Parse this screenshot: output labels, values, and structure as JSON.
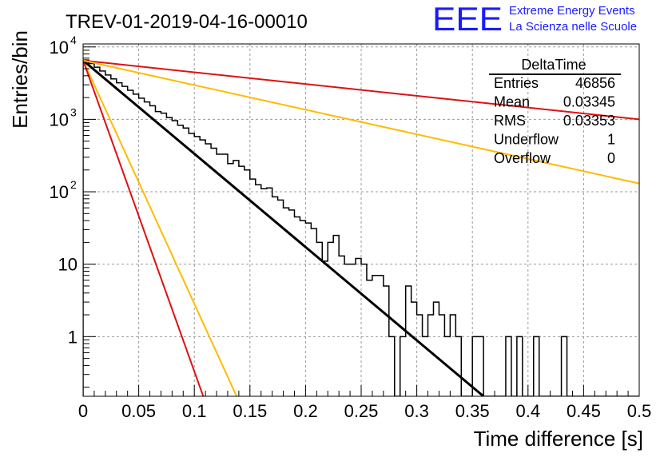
{
  "title": "TREV-01-2019-04-16-00010",
  "logo": {
    "mark": "EEE",
    "line1": "Extreme Energy Events",
    "line2": "La Scienza nelle Scuole",
    "color": "#1a1aff"
  },
  "stats": {
    "name": "DeltaTime",
    "rows": [
      {
        "label": "Entries",
        "value": "46856"
      },
      {
        "label": "Mean",
        "value": "0.03345"
      },
      {
        "label": "RMS",
        "value": "0.03353"
      },
      {
        "label": "Underflow",
        "value": "1"
      },
      {
        "label": "Overflow",
        "value": "0"
      }
    ]
  },
  "chart_data": {
    "type": "line",
    "title": "TREV-01-2019-04-16-00010",
    "xlabel": "Time difference [s]",
    "ylabel": "Entries/bin",
    "xlim": [
      0,
      0.5
    ],
    "ylim": [
      0.15,
      11000
    ],
    "yscale": "log",
    "grid": true,
    "x_ticks": [
      "0",
      "0.05",
      "0.1",
      "0.15",
      "0.2",
      "0.25",
      "0.3",
      "0.35",
      "0.4",
      "0.45",
      "0.5"
    ],
    "y_ticks": [
      {
        "value": 1,
        "label": "1"
      },
      {
        "value": 10,
        "label": "10"
      },
      {
        "value": 100,
        "label": "10",
        "exp": "2"
      },
      {
        "value": 1000,
        "label": "10",
        "exp": "3"
      },
      {
        "value": 10000,
        "label": "10",
        "exp": "4"
      }
    ],
    "histogram": {
      "name": "DeltaTime",
      "color": "#000000",
      "bins": [
        [
          0.0,
          6600
        ],
        [
          0.005,
          5900
        ],
        [
          0.01,
          5250
        ],
        [
          0.015,
          4650
        ],
        [
          0.02,
          4100
        ],
        [
          0.025,
          3620
        ],
        [
          0.03,
          3200
        ],
        [
          0.035,
          2850
        ],
        [
          0.04,
          2520
        ],
        [
          0.045,
          2230
        ],
        [
          0.05,
          1960
        ],
        [
          0.055,
          1740
        ],
        [
          0.06,
          1540
        ],
        [
          0.065,
          1280
        ],
        [
          0.07,
          1220
        ],
        [
          0.075,
          1060
        ],
        [
          0.08,
          960
        ],
        [
          0.085,
          830
        ],
        [
          0.09,
          760
        ],
        [
          0.095,
          640
        ],
        [
          0.1,
          580
        ],
        [
          0.105,
          520
        ],
        [
          0.11,
          460
        ],
        [
          0.115,
          400
        ],
        [
          0.12,
          330
        ],
        [
          0.125,
          330
        ],
        [
          0.13,
          245
        ],
        [
          0.135,
          270
        ],
        [
          0.14,
          225
        ],
        [
          0.145,
          200
        ],
        [
          0.15,
          150
        ],
        [
          0.155,
          125
        ],
        [
          0.16,
          110
        ],
        [
          0.165,
          113
        ],
        [
          0.17,
          85
        ],
        [
          0.175,
          77
        ],
        [
          0.18,
          60
        ],
        [
          0.185,
          56
        ],
        [
          0.19,
          45
        ],
        [
          0.195,
          40
        ],
        [
          0.2,
          37
        ],
        [
          0.205,
          31
        ],
        [
          0.21,
          20
        ],
        [
          0.215,
          11
        ],
        [
          0.22,
          20
        ],
        [
          0.225,
          25
        ],
        [
          0.23,
          13
        ],
        [
          0.235,
          10
        ],
        [
          0.24,
          10
        ],
        [
          0.245,
          12
        ],
        [
          0.25,
          10
        ],
        [
          0.255,
          6
        ],
        [
          0.26,
          7
        ],
        [
          0.265,
          7
        ],
        [
          0.27,
          5
        ],
        [
          0.275,
          1
        ],
        [
          0.28,
          0
        ],
        [
          0.285,
          1
        ],
        [
          0.29,
          5
        ],
        [
          0.295,
          3
        ],
        [
          0.3,
          2
        ],
        [
          0.305,
          1
        ],
        [
          0.31,
          2
        ],
        [
          0.315,
          3
        ],
        [
          0.32,
          2
        ],
        [
          0.325,
          1
        ],
        [
          0.33,
          2
        ],
        [
          0.335,
          1
        ],
        [
          0.34,
          0
        ],
        [
          0.345,
          0
        ],
        [
          0.35,
          1
        ],
        [
          0.355,
          1
        ],
        [
          0.36,
          0
        ],
        [
          0.365,
          0
        ],
        [
          0.37,
          0
        ],
        [
          0.375,
          0
        ],
        [
          0.38,
          1
        ],
        [
          0.385,
          0
        ],
        [
          0.39,
          1
        ],
        [
          0.395,
          0
        ],
        [
          0.4,
          0
        ],
        [
          0.405,
          1
        ],
        [
          0.41,
          0
        ],
        [
          0.415,
          0
        ],
        [
          0.42,
          0
        ],
        [
          0.425,
          0
        ],
        [
          0.43,
          1
        ],
        [
          0.435,
          0
        ],
        [
          0.44,
          0
        ],
        [
          0.445,
          0
        ],
        [
          0.45,
          0
        ],
        [
          0.455,
          0
        ],
        [
          0.46,
          0
        ],
        [
          0.465,
          0
        ],
        [
          0.47,
          0
        ],
        [
          0.475,
          0
        ],
        [
          0.48,
          0
        ],
        [
          0.485,
          0
        ],
        [
          0.49,
          0
        ],
        [
          0.495,
          0
        ]
      ],
      "bin_width": 0.005
    },
    "series": [
      {
        "color": "#000000",
        "x": [
          0,
          0.36
        ],
        "y": [
          6500,
          0.15
        ]
      },
      {
        "color": "#dd1111",
        "x": [
          0,
          0.5
        ],
        "y": [
          6500,
          1000
        ]
      },
      {
        "color": "#ffbb00",
        "x": [
          0,
          0.5
        ],
        "y": [
          6500,
          130
        ]
      },
      {
        "color": "#ffbb00",
        "x": [
          0,
          0.138
        ],
        "y": [
          6500,
          0.15
        ]
      },
      {
        "color": "#dd1111",
        "x": [
          0,
          0.108
        ],
        "y": [
          6500,
          0.15
        ]
      }
    ]
  }
}
